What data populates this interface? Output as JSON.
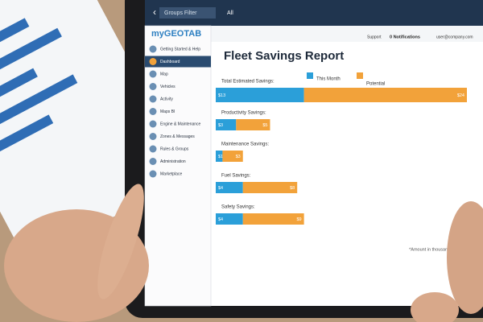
{
  "header": {
    "groups_filter": "Groups Filter",
    "all": "All",
    "support": "Support",
    "notifications": "0 Notifications",
    "user": "user@company.com"
  },
  "sidebar": {
    "logo": "myGEOTAB",
    "items": [
      "Getting Started & Help",
      "Dashboard",
      "Map",
      "Vehicles",
      "Activity",
      "Maps BI",
      "Engine & Maintenance",
      "Zones & Messages",
      "Rules & Groups",
      "Administration",
      "Marketplace"
    ],
    "active": 1
  },
  "chart_data": {
    "type": "bar",
    "orientation": "horizontal",
    "stacked": true,
    "title": "Fleet Savings Report",
    "categories": [
      "Total Estimated Savings:",
      "Productivity Savings:",
      "Maintenance Savings:",
      "Fuel Savings:",
      "Safety Savings:"
    ],
    "series": [
      {
        "name": "This Month",
        "color": "#2b9fd9",
        "values": [
          13,
          3,
          1,
          4,
          4
        ],
        "value_labels": [
          "$13",
          "$3",
          "$1",
          "$4",
          "$4"
        ]
      },
      {
        "name": "Potential",
        "color": "#f2a23a",
        "values": [
          24,
          5,
          3,
          8,
          9
        ],
        "value_labels": [
          "$24",
          "$5",
          "$3",
          "$8",
          "$9"
        ]
      }
    ],
    "note": "*Amount in thousands"
  }
}
